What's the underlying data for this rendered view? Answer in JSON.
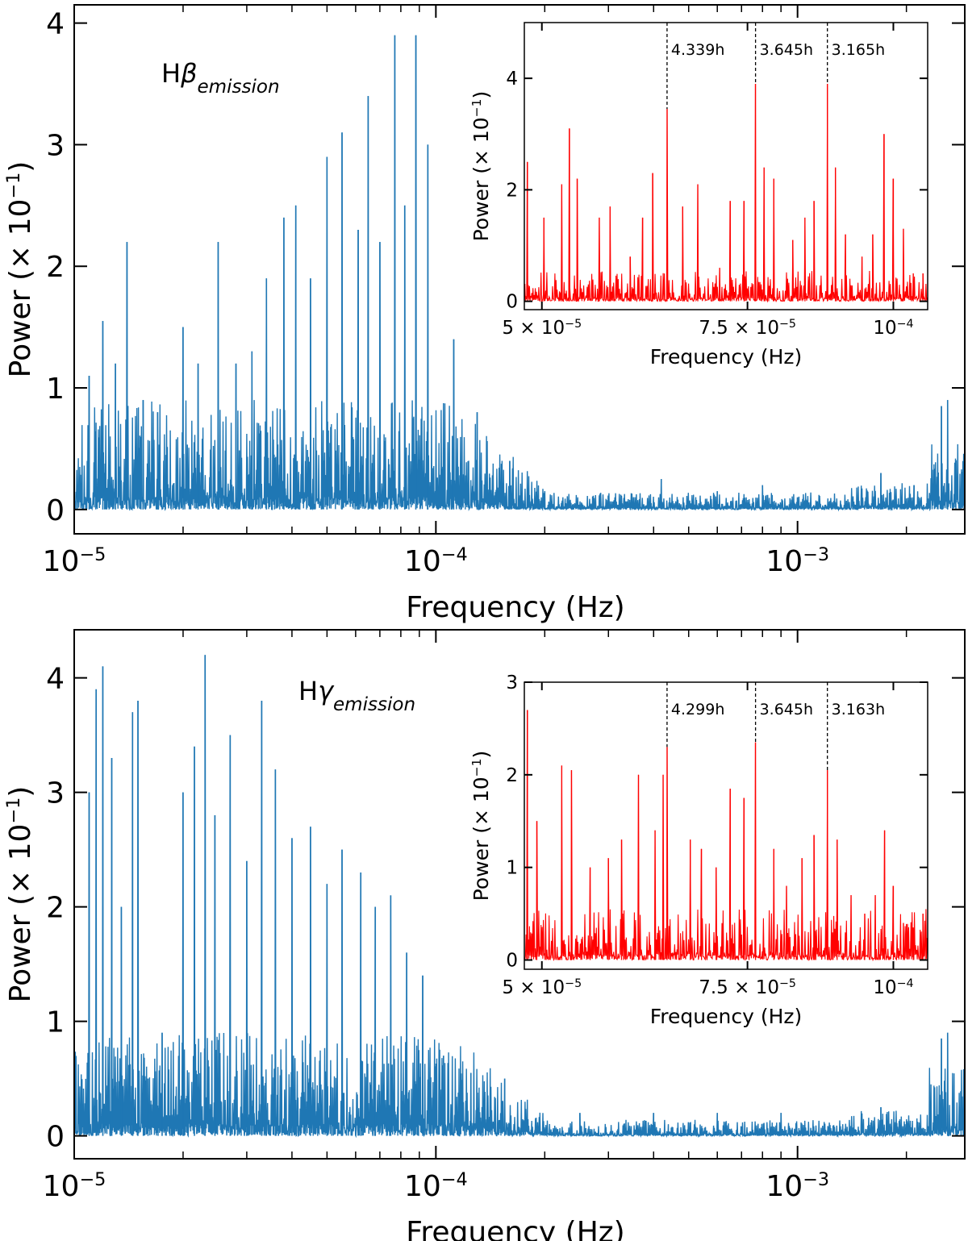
{
  "chart_data": [
    {
      "type": "line",
      "panel": "top",
      "label_main": "H",
      "label_greek": "β",
      "label_sub": "emission",
      "xlabel": "Frequency (Hz)",
      "ylabel": "Power (× 10",
      "ylabel_exp": "−1",
      "ylabel_close": ")",
      "xscale": "log",
      "xlim": [
        1e-05,
        0.0029
      ],
      "ylim": [
        -0.2,
        4.15
      ],
      "line_color": "#1f77b4",
      "xtick_values": [
        1e-05,
        0.0001,
        0.001
      ],
      "xticks": [
        {
          "base": "10",
          "exp": "−5"
        },
        {
          "base": "10",
          "exp": "−4"
        },
        {
          "base": "10",
          "exp": "−3"
        }
      ],
      "yticks": [
        "0",
        "1",
        "2",
        "3",
        "4"
      ],
      "peaks": [
        {
          "x": 1e-05,
          "y": 0.9
        },
        {
          "x": 1.1e-05,
          "y": 1.1
        },
        {
          "x": 1.2e-05,
          "y": 1.55
        },
        {
          "x": 1.3e-05,
          "y": 1.2
        },
        {
          "x": 1.4e-05,
          "y": 2.2
        },
        {
          "x": 1.55e-05,
          "y": 0.9
        },
        {
          "x": 1.7e-05,
          "y": 0.8
        },
        {
          "x": 2e-05,
          "y": 1.5
        },
        {
          "x": 2.2e-05,
          "y": 1.2
        },
        {
          "x": 2.5e-05,
          "y": 2.2
        },
        {
          "x": 2.8e-05,
          "y": 1.2
        },
        {
          "x": 3.1e-05,
          "y": 1.3
        },
        {
          "x": 3.4e-05,
          "y": 1.9
        },
        {
          "x": 3.8e-05,
          "y": 2.4
        },
        {
          "x": 4.1e-05,
          "y": 2.5
        },
        {
          "x": 4.5e-05,
          "y": 1.9
        },
        {
          "x": 5e-05,
          "y": 2.9
        },
        {
          "x": 5.5e-05,
          "y": 3.1
        },
        {
          "x": 6.1e-05,
          "y": 2.3
        },
        {
          "x": 6.5e-05,
          "y": 3.4
        },
        {
          "x": 7e-05,
          "y": 2.2
        },
        {
          "x": 7.7e-05,
          "y": 3.9
        },
        {
          "x": 8.2e-05,
          "y": 2.5
        },
        {
          "x": 8.8e-05,
          "y": 3.9
        },
        {
          "x": 9.5e-05,
          "y": 3.0
        },
        {
          "x": 0.000112,
          "y": 1.4
        },
        {
          "x": 0.00013,
          "y": 0.8
        },
        {
          "x": 0.00016,
          "y": 0.4
        },
        {
          "x": 0.0002,
          "y": 0.15
        },
        {
          "x": 0.00042,
          "y": 0.25
        },
        {
          "x": 0.0006,
          "y": 0.15
        },
        {
          "x": 0.0008,
          "y": 0.2
        },
        {
          "x": 0.001,
          "y": 0.1
        },
        {
          "x": 0.0017,
          "y": 0.3
        },
        {
          "x": 0.0021,
          "y": 0.2
        },
        {
          "x": 0.0025,
          "y": 0.85
        },
        {
          "x": 0.0026,
          "y": 0.9
        },
        {
          "x": 0.0029,
          "y": 0.5
        }
      ],
      "inset": {
        "type": "line",
        "line_color": "#ff0000",
        "xlabel": "Frequency (Hz)",
        "ylabel": "Power (× 10",
        "ylabel_exp": "−1",
        "ylabel_close": ")",
        "xlim": [
          4.83e-05,
          0.000107
        ],
        "ylim": [
          -0.15,
          5.0
        ],
        "xtick_values": [
          5e-05,
          7.5e-05,
          0.0001
        ],
        "xticks": [
          {
            "base": "5 × 10",
            "exp": "−5"
          },
          {
            "base": "7.5 × 10",
            "exp": "−5"
          },
          {
            "base": "10",
            "exp": "−4"
          }
        ],
        "yticks": [
          "0",
          "2",
          "4"
        ],
        "ytick_values": [
          0,
          2,
          4
        ],
        "annotations": [
          {
            "x": 6.4e-05,
            "label": "4.339h"
          },
          {
            "x": 7.62e-05,
            "label": "3.645h"
          },
          {
            "x": 8.78e-05,
            "label": "3.165h"
          }
        ],
        "peaks": [
          {
            "x": 4.86e-05,
            "y": 2.5
          },
          {
            "x": 5.02e-05,
            "y": 1.5
          },
          {
            "x": 5.2e-05,
            "y": 2.1
          },
          {
            "x": 5.28e-05,
            "y": 3.1
          },
          {
            "x": 5.36e-05,
            "y": 2.2
          },
          {
            "x": 5.6e-05,
            "y": 1.5
          },
          {
            "x": 5.72e-05,
            "y": 1.7
          },
          {
            "x": 5.95e-05,
            "y": 0.8
          },
          {
            "x": 6.1e-05,
            "y": 1.5
          },
          {
            "x": 6.22e-05,
            "y": 2.3
          },
          {
            "x": 6.4e-05,
            "y": 3.45
          },
          {
            "x": 6.6e-05,
            "y": 1.7
          },
          {
            "x": 6.8e-05,
            "y": 2.1
          },
          {
            "x": 7.1e-05,
            "y": 0.6
          },
          {
            "x": 7.25e-05,
            "y": 1.8
          },
          {
            "x": 7.45e-05,
            "y": 1.8
          },
          {
            "x": 7.62e-05,
            "y": 3.9
          },
          {
            "x": 7.75e-05,
            "y": 2.4
          },
          {
            "x": 7.9e-05,
            "y": 2.2
          },
          {
            "x": 8.2e-05,
            "y": 1.1
          },
          {
            "x": 8.4e-05,
            "y": 1.5
          },
          {
            "x": 8.55e-05,
            "y": 1.8
          },
          {
            "x": 8.78e-05,
            "y": 3.9
          },
          {
            "x": 8.92e-05,
            "y": 2.4
          },
          {
            "x": 9.1e-05,
            "y": 1.2
          },
          {
            "x": 9.4e-05,
            "y": 0.8
          },
          {
            "x": 9.6e-05,
            "y": 1.2
          },
          {
            "x": 9.82e-05,
            "y": 3.0
          },
          {
            "x": 0.0001,
            "y": 2.2
          },
          {
            "x": 0.000102,
            "y": 1.3
          },
          {
            "x": 0.000104,
            "y": 0.5
          },
          {
            "x": 0.000106,
            "y": 0.5
          }
        ]
      }
    },
    {
      "type": "line",
      "panel": "bottom",
      "label_main": "H",
      "label_greek": "γ",
      "label_sub": "emission",
      "xlabel": "Frequency (Hz)",
      "ylabel": "Power (× 10",
      "ylabel_exp": "−1",
      "ylabel_close": ")",
      "xscale": "log",
      "xlim": [
        1e-05,
        0.0029
      ],
      "ylim": [
        -0.2,
        4.42
      ],
      "line_color": "#1f77b4",
      "xtick_values": [
        1e-05,
        0.0001,
        0.001
      ],
      "xticks": [
        {
          "base": "10",
          "exp": "−5"
        },
        {
          "base": "10",
          "exp": "−4"
        },
        {
          "base": "10",
          "exp": "−3"
        }
      ],
      "yticks": [
        "0",
        "1",
        "2",
        "3",
        "4"
      ],
      "peaks": [
        {
          "x": 1e-05,
          "y": 0.8
        },
        {
          "x": 1.1e-05,
          "y": 3.0
        },
        {
          "x": 1.15e-05,
          "y": 3.9
        },
        {
          "x": 1.2e-05,
          "y": 4.1
        },
        {
          "x": 1.27e-05,
          "y": 3.3
        },
        {
          "x": 1.35e-05,
          "y": 2.0
        },
        {
          "x": 1.45e-05,
          "y": 3.7
        },
        {
          "x": 1.5e-05,
          "y": 3.8
        },
        {
          "x": 1.6e-05,
          "y": 0.5
        },
        {
          "x": 1.75e-05,
          "y": 0.9
        },
        {
          "x": 2e-05,
          "y": 3.0
        },
        {
          "x": 2.15e-05,
          "y": 3.4
        },
        {
          "x": 2.3e-05,
          "y": 4.2
        },
        {
          "x": 2.45e-05,
          "y": 2.8
        },
        {
          "x": 2.7e-05,
          "y": 3.5
        },
        {
          "x": 3e-05,
          "y": 2.4
        },
        {
          "x": 3.3e-05,
          "y": 3.8
        },
        {
          "x": 3.6e-05,
          "y": 3.2
        },
        {
          "x": 4e-05,
          "y": 2.6
        },
        {
          "x": 4.5e-05,
          "y": 2.7
        },
        {
          "x": 5e-05,
          "y": 2.2
        },
        {
          "x": 5.5e-05,
          "y": 2.5
        },
        {
          "x": 6.2e-05,
          "y": 2.3
        },
        {
          "x": 6.8e-05,
          "y": 2.0
        },
        {
          "x": 7.5e-05,
          "y": 2.1
        },
        {
          "x": 8.3e-05,
          "y": 1.6
        },
        {
          "x": 9.2e-05,
          "y": 1.4
        },
        {
          "x": 0.000105,
          "y": 0.7
        },
        {
          "x": 0.000125,
          "y": 0.55
        },
        {
          "x": 0.000155,
          "y": 0.5
        },
        {
          "x": 0.00025,
          "y": 0.2
        },
        {
          "x": 0.0004,
          "y": 0.2
        },
        {
          "x": 0.0006,
          "y": 0.2
        },
        {
          "x": 0.0009,
          "y": 0.2
        },
        {
          "x": 0.0017,
          "y": 0.25
        },
        {
          "x": 0.0025,
          "y": 0.85
        },
        {
          "x": 0.0026,
          "y": 0.9
        },
        {
          "x": 0.0029,
          "y": 0.4
        }
      ],
      "inset": {
        "type": "line",
        "line_color": "#ff0000",
        "xlabel": "Frequency (Hz)",
        "ylabel": "Power (× 10",
        "ylabel_exp": "−1",
        "ylabel_close": ")",
        "xlim": [
          4.83e-05,
          0.000107
        ],
        "ylim": [
          -0.1,
          3.0
        ],
        "xtick_values": [
          5e-05,
          7.5e-05,
          0.0001
        ],
        "xticks": [
          {
            "base": "5 × 10",
            "exp": "−5"
          },
          {
            "base": "7.5 × 10",
            "exp": "−5"
          },
          {
            "base": "10",
            "exp": "−4"
          }
        ],
        "yticks": [
          "0",
          "1",
          "2",
          "3"
        ],
        "ytick_values": [
          0,
          1,
          2,
          3
        ],
        "annotations": [
          {
            "x": 6.4e-05,
            "label": "4.299h"
          },
          {
            "x": 7.62e-05,
            "label": "3.645h"
          },
          {
            "x": 8.78e-05,
            "label": "3.163h"
          }
        ],
        "peaks": [
          {
            "x": 4.86e-05,
            "y": 2.7
          },
          {
            "x": 4.95e-05,
            "y": 1.5
          },
          {
            "x": 5.2e-05,
            "y": 2.1
          },
          {
            "x": 5.3e-05,
            "y": 2.05
          },
          {
            "x": 5.5e-05,
            "y": 1.0
          },
          {
            "x": 5.7e-05,
            "y": 1.1
          },
          {
            "x": 5.85e-05,
            "y": 1.3
          },
          {
            "x": 6.05e-05,
            "y": 2.0
          },
          {
            "x": 6.25e-05,
            "y": 1.4
          },
          {
            "x": 6.35e-05,
            "y": 2.0
          },
          {
            "x": 6.4e-05,
            "y": 2.3
          },
          {
            "x": 6.7e-05,
            "y": 1.3
          },
          {
            "x": 6.85e-05,
            "y": 1.2
          },
          {
            "x": 7.05e-05,
            "y": 1.0
          },
          {
            "x": 7.25e-05,
            "y": 1.85
          },
          {
            "x": 7.45e-05,
            "y": 1.75
          },
          {
            "x": 7.62e-05,
            "y": 2.35
          },
          {
            "x": 7.9e-05,
            "y": 1.2
          },
          {
            "x": 8.1e-05,
            "y": 0.8
          },
          {
            "x": 8.35e-05,
            "y": 1.1
          },
          {
            "x": 8.55e-05,
            "y": 1.35
          },
          {
            "x": 8.78e-05,
            "y": 2.05
          },
          {
            "x": 8.95e-05,
            "y": 1.3
          },
          {
            "x": 9.2e-05,
            "y": 0.7
          },
          {
            "x": 9.45e-05,
            "y": 0.5
          },
          {
            "x": 9.65e-05,
            "y": 0.7
          },
          {
            "x": 9.83e-05,
            "y": 1.4
          },
          {
            "x": 0.0001,
            "y": 0.8
          },
          {
            "x": 0.000102,
            "y": 0.4
          },
          {
            "x": 0.000104,
            "y": 0.35
          },
          {
            "x": 0.000106,
            "y": 0.5
          }
        ]
      }
    }
  ]
}
